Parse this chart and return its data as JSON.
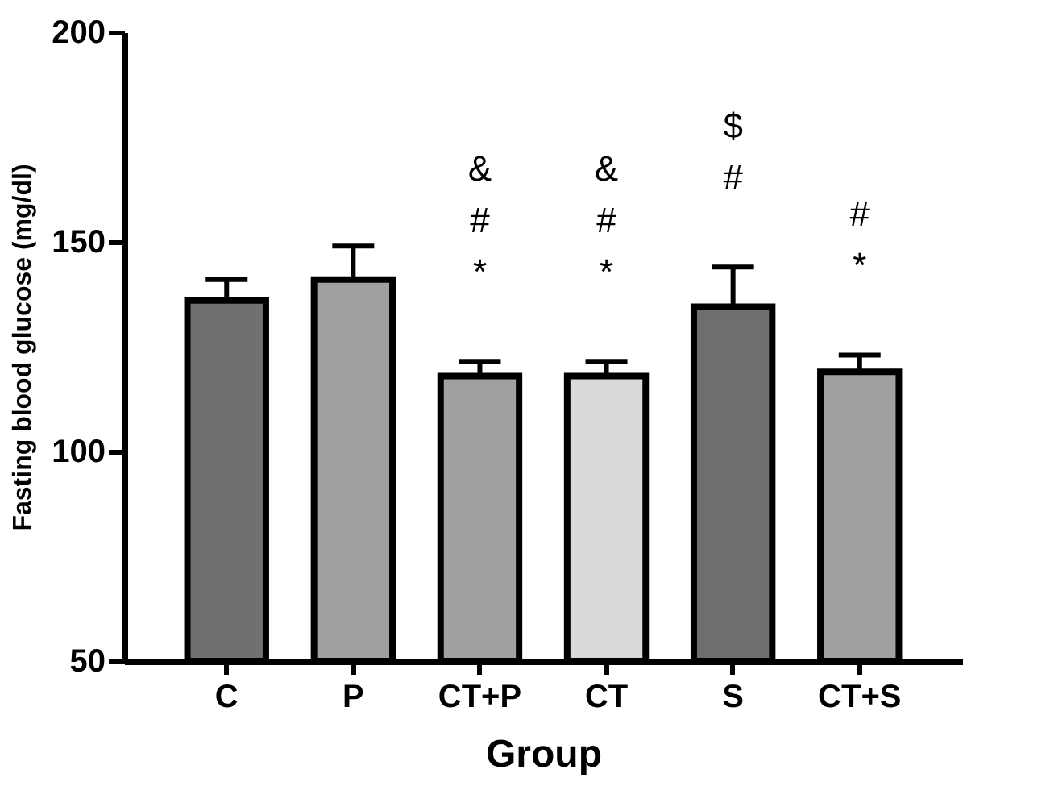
{
  "chart_data": {
    "type": "bar",
    "xlabel": "Group",
    "ylabel": "Fasting blood glucose  (mg/dl)",
    "categories": [
      "C",
      "P",
      "CT+P",
      "CT",
      "S",
      "CT+S"
    ],
    "values": [
      136,
      141,
      118,
      118,
      134.5,
      119
    ],
    "colors": [
      "#707070",
      "#a0a0a0",
      "#a0a0a0",
      "#d9d9d9",
      "#6e6e6e",
      "#a0a0a0"
    ],
    "errors": [
      [
        136,
        141
      ],
      [
        141,
        149
      ],
      [
        118,
        121.5
      ],
      [
        118,
        121.5
      ],
      [
        134.5,
        144
      ],
      [
        119,
        123
      ]
    ],
    "ylim": [
      50,
      200
    ],
    "yticks": [
      50,
      100,
      150,
      200
    ],
    "grid": false,
    "value_labels": [
      null,
      null,
      "&\n#\n*",
      "&\n#\n*",
      "$\n#",
      "#\n*"
    ]
  }
}
